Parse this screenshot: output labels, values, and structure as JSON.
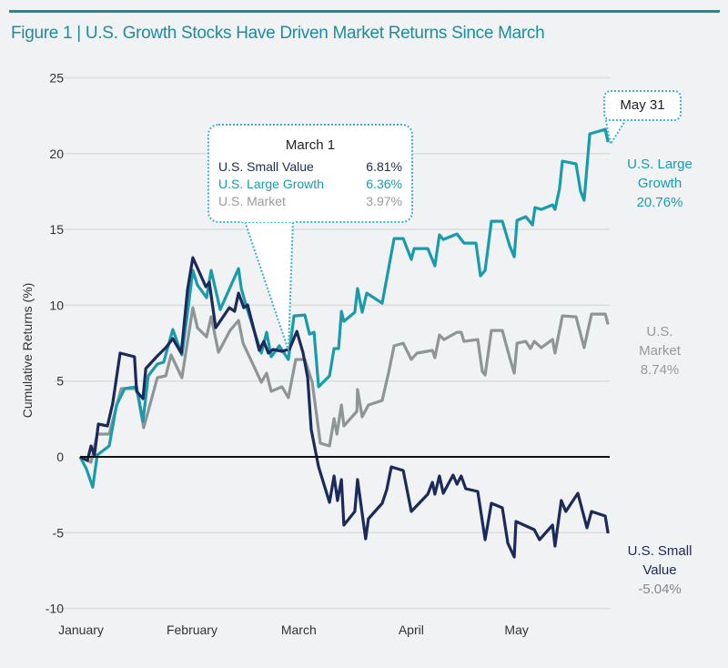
{
  "title": "Figure 1 | U.S. Growth Stocks Have Driven Market Returns Since March",
  "colors": {
    "small_value": "#1b2a5a",
    "large_growth": "#1a9bab",
    "market": "#8e9595",
    "title": "#1f8c9c"
  },
  "tooltip_march": {
    "date": "March 1",
    "rows": [
      {
        "name": "U.S. Small Value",
        "value": "6.81%"
      },
      {
        "name": "U.S. Large Growth",
        "value": "6.36%"
      },
      {
        "name": "U.S. Market",
        "value": "3.97%"
      }
    ]
  },
  "tooltip_may": {
    "date": "May 31"
  },
  "end_labels": {
    "large_growth": {
      "line1": "U.S. Large",
      "line2": "Growth",
      "value": "20.76%"
    },
    "market": {
      "line1": "U.S.",
      "line2": "Market",
      "value": "8.74%"
    },
    "small_value": {
      "line1": "U.S. Small",
      "line2": "Value",
      "value": "-5.04%"
    }
  },
  "chart_data": {
    "type": "line",
    "title": "Figure 1 | U.S. Growth Stocks Have Driven Market Returns Since March",
    "xlabel": "",
    "ylabel": "Cumulative Returns (%)",
    "x_unit": "days since Jan 1",
    "xlim": [
      0,
      151
    ],
    "ylim": [
      -10,
      25
    ],
    "y_ticks": [
      -10,
      -5,
      0,
      5,
      10,
      15,
      20,
      25
    ],
    "x_ticks": [
      {
        "label": "January",
        "day": 0
      },
      {
        "label": "February",
        "day": 31.6
      },
      {
        "label": "March",
        "day": 62
      },
      {
        "label": "April",
        "day": 94
      },
      {
        "label": "May",
        "day": 124
      }
    ],
    "grid": true,
    "series": [
      {
        "name": "U.S. Large Growth",
        "key": "large_growth",
        "points": [
          [
            0,
            0
          ],
          [
            1.8,
            -0.78
          ],
          [
            3.6,
            -2.0
          ],
          [
            4.9,
            0.12
          ],
          [
            8.3,
            0.72
          ],
          [
            10.4,
            3.42
          ],
          [
            12.7,
            4.5
          ],
          [
            16.1,
            4.62
          ],
          [
            17.9,
            2.34
          ],
          [
            19.4,
            5.34
          ],
          [
            22,
            6.12
          ],
          [
            23.8,
            6.24
          ],
          [
            26.4,
            8.4
          ],
          [
            29,
            6.72
          ],
          [
            30.8,
            9.9
          ],
          [
            32.1,
            12.3
          ],
          [
            33.4,
            11.34
          ],
          [
            36,
            10.5
          ],
          [
            37.3,
            12.3
          ],
          [
            39.9,
            9.72
          ],
          [
            45.1,
            12.42
          ],
          [
            45.9,
            11.1
          ],
          [
            47.2,
            10.02
          ],
          [
            51.6,
            6.84
          ],
          [
            53.1,
            8.22
          ],
          [
            54.4,
            6.6
          ],
          [
            56.7,
            7.32
          ],
          [
            59.3,
            6.42
          ],
          [
            60.9,
            9.3
          ],
          [
            64,
            9.36
          ],
          [
            65.3,
            8.1
          ],
          [
            66.6,
            8.22
          ],
          [
            67.9,
            4.62
          ],
          [
            71,
            5.34
          ],
          [
            72.3,
            7.14
          ],
          [
            73.6,
            7.14
          ],
          [
            74.4,
            9.6
          ],
          [
            75.1,
            8.94
          ],
          [
            78.2,
            9.54
          ],
          [
            79,
            11.1
          ],
          [
            80.3,
            9.54
          ],
          [
            81.6,
            10.8
          ],
          [
            86,
            10.14
          ],
          [
            89.4,
            14.4
          ],
          [
            92,
            14.4
          ],
          [
            94.3,
            13.02
          ],
          [
            95.1,
            13.74
          ],
          [
            99,
            13.74
          ],
          [
            101,
            12.6
          ],
          [
            102.3,
            14.64
          ],
          [
            103.4,
            14.34
          ],
          [
            107.3,
            14.7
          ],
          [
            109.3,
            14.1
          ],
          [
            112.7,
            14.1
          ],
          [
            114,
            11.94
          ],
          [
            115.3,
            12.3
          ],
          [
            117.1,
            15.54
          ],
          [
            120.2,
            15.54
          ],
          [
            122.3,
            13.92
          ],
          [
            123.6,
            13.2
          ],
          [
            124.4,
            15.6
          ],
          [
            126.9,
            15.84
          ],
          [
            128.8,
            15.3
          ],
          [
            129.5,
            16.44
          ],
          [
            131.3,
            16.32
          ],
          [
            134.5,
            16.62
          ],
          [
            135.2,
            16.32
          ],
          [
            136.5,
            17.7
          ],
          [
            137.3,
            19.5
          ],
          [
            141.2,
            19.32
          ],
          [
            142.5,
            17.52
          ],
          [
            143.5,
            16.92
          ],
          [
            145.1,
            21.3
          ],
          [
            149.5,
            21.6
          ],
          [
            150.3,
            20.76
          ]
        ]
      },
      {
        "name": "U.S. Market",
        "key": "market",
        "points": [
          [
            0,
            0
          ],
          [
            3.1,
            -0.36
          ],
          [
            4.9,
            1.5
          ],
          [
            8.3,
            1.5
          ],
          [
            11.7,
            4.5
          ],
          [
            16.1,
            4.5
          ],
          [
            18.1,
            1.92
          ],
          [
            22,
            5.22
          ],
          [
            24.4,
            5.34
          ],
          [
            25.9,
            6.72
          ],
          [
            29,
            5.22
          ],
          [
            32.1,
            9.84
          ],
          [
            33.4,
            8.52
          ],
          [
            36,
            7.92
          ],
          [
            37.3,
            9.24
          ],
          [
            39.4,
            6.9
          ],
          [
            42.7,
            8.34
          ],
          [
            45.1,
            9
          ],
          [
            46.4,
            7.5
          ],
          [
            51.6,
            4.92
          ],
          [
            53.1,
            5.52
          ],
          [
            54.4,
            4.32
          ],
          [
            57.5,
            4.62
          ],
          [
            59.3,
            3.9
          ],
          [
            61.4,
            6.42
          ],
          [
            64,
            6.42
          ],
          [
            66.1,
            4.92
          ],
          [
            68.4,
            0.9
          ],
          [
            71,
            0.72
          ],
          [
            72.3,
            2.52
          ],
          [
            73.1,
            1.5
          ],
          [
            74.4,
            3.42
          ],
          [
            75.1,
            2.04
          ],
          [
            78.8,
            3
          ],
          [
            79,
            4.44
          ],
          [
            80.3,
            2.64
          ],
          [
            82.1,
            3.42
          ],
          [
            86,
            3.72
          ],
          [
            87.8,
            5.52
          ],
          [
            89.4,
            7.32
          ],
          [
            92,
            7.5
          ],
          [
            94.3,
            6.42
          ],
          [
            95.9,
            6.84
          ],
          [
            100.3,
            7.02
          ],
          [
            101,
            6.54
          ],
          [
            102.3,
            8.04
          ],
          [
            103.6,
            7.74
          ],
          [
            107.3,
            8.22
          ],
          [
            108.5,
            8.22
          ],
          [
            109.3,
            7.62
          ],
          [
            113.2,
            7.74
          ],
          [
            114.5,
            5.64
          ],
          [
            115.3,
            5.4
          ],
          [
            117.1,
            8.34
          ],
          [
            120.2,
            8.34
          ],
          [
            122.3,
            6.54
          ],
          [
            123.6,
            5.52
          ],
          [
            124.4,
            7.5
          ],
          [
            126.9,
            7.62
          ],
          [
            128.2,
            7.14
          ],
          [
            129.3,
            7.62
          ],
          [
            131.3,
            7.2
          ],
          [
            134.5,
            7.74
          ],
          [
            135.2,
            6.84
          ],
          [
            137.3,
            9.3
          ],
          [
            141.2,
            9.24
          ],
          [
            143.5,
            7.2
          ],
          [
            145.6,
            9.42
          ],
          [
            149.5,
            9.42
          ],
          [
            150.3,
            8.74
          ]
        ]
      },
      {
        "name": "U.S. Small Value",
        "key": "small_value",
        "points": [
          [
            0,
            0
          ],
          [
            2.1,
            -0.24
          ],
          [
            3.1,
            0.72
          ],
          [
            4.1,
            0.12
          ],
          [
            5.2,
            2.16
          ],
          [
            7.8,
            2.04
          ],
          [
            9.3,
            3.54
          ],
          [
            11.4,
            6.84
          ],
          [
            15.5,
            6.6
          ],
          [
            16.1,
            4.32
          ],
          [
            17.9,
            3.84
          ],
          [
            18.7,
            5.82
          ],
          [
            21.8,
            6.6
          ],
          [
            24.4,
            7.2
          ],
          [
            26.4,
            7.8
          ],
          [
            28.8,
            6.84
          ],
          [
            30.6,
            11.04
          ],
          [
            32.1,
            13.14
          ],
          [
            35.8,
            11.22
          ],
          [
            36.8,
            11.52
          ],
          [
            38.6,
            8.52
          ],
          [
            42.5,
            9.84
          ],
          [
            44,
            9.6
          ],
          [
            45.1,
            10.8
          ],
          [
            46.6,
            9.84
          ],
          [
            47.7,
            10.02
          ],
          [
            51,
            7.02
          ],
          [
            52.3,
            7.62
          ],
          [
            53.6,
            6.84
          ],
          [
            54.9,
            7.08
          ],
          [
            57.5,
            6.96
          ],
          [
            59.6,
            7.1
          ],
          [
            61.7,
            8.28
          ],
          [
            63.5,
            6.84
          ],
          [
            64.8,
            5.22
          ],
          [
            65.8,
            1.8
          ],
          [
            67.9,
            -0.66
          ],
          [
            71,
            -3.0
          ],
          [
            72.3,
            -1.26
          ],
          [
            73.3,
            -2.88
          ],
          [
            74.4,
            -1.5
          ],
          [
            75.1,
            -4.5
          ],
          [
            78.2,
            -3.6
          ],
          [
            79,
            -1.5
          ],
          [
            81.3,
            -5.4
          ],
          [
            82.1,
            -4.08
          ],
          [
            86,
            -3.06
          ],
          [
            87.3,
            -2.16
          ],
          [
            88.6,
            -0.66
          ],
          [
            92,
            -0.9
          ],
          [
            94.3,
            -3.6
          ],
          [
            99,
            -2.46
          ],
          [
            100.3,
            -1.68
          ],
          [
            101,
            -2.46
          ],
          [
            102.3,
            -1.26
          ],
          [
            103.4,
            -2.4
          ],
          [
            106.2,
            -1.2
          ],
          [
            107.3,
            -1.8
          ],
          [
            108.5,
            -1.26
          ],
          [
            109.8,
            -2.1
          ],
          [
            113.2,
            -2.28
          ],
          [
            115.3,
            -5.46
          ],
          [
            117.1,
            -3.06
          ],
          [
            120.2,
            -3.36
          ],
          [
            121.8,
            -5.7
          ],
          [
            123.6,
            -6.6
          ],
          [
            124.1,
            -4.26
          ],
          [
            129.3,
            -4.8
          ],
          [
            130.8,
            -5.46
          ],
          [
            134.5,
            -4.5
          ],
          [
            135.2,
            -5.88
          ],
          [
            137,
            -2.88
          ],
          [
            138.3,
            -3.6
          ],
          [
            141.7,
            -2.4
          ],
          [
            144.3,
            -4.68
          ],
          [
            145.6,
            -3.6
          ],
          [
            149.5,
            -3.9
          ],
          [
            150.3,
            -5.04
          ]
        ]
      }
    ],
    "annotations": [
      "March 1",
      "May 31"
    ]
  }
}
